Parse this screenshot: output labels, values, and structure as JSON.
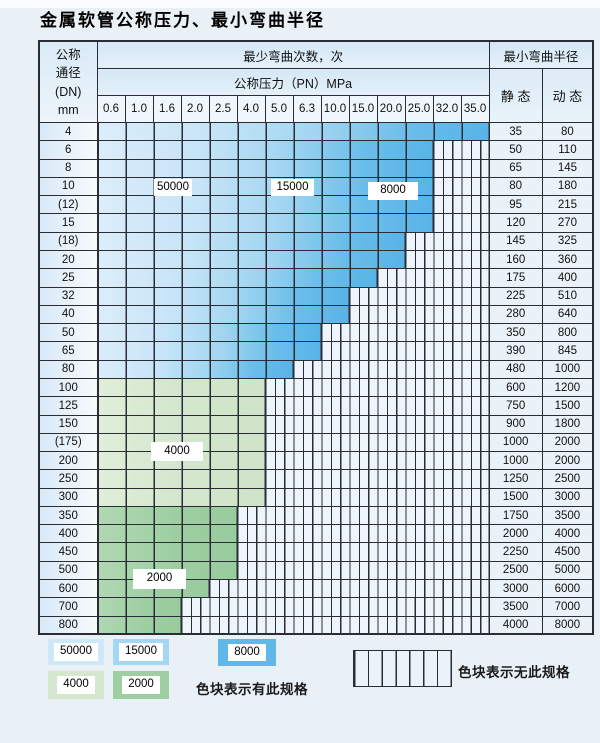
{
  "title": "金属软管公称压力、最小弯曲半径",
  "table": {
    "dn_header_lines": [
      "公称",
      "通径",
      "(DN)",
      "mm"
    ],
    "cycles_header": "最少弯曲次数，次",
    "pressure_header": "公称压力（PN）MPa",
    "radius_header": "最小弯曲半径",
    "static_label": "静 态",
    "dynamic_label": "动 态",
    "pressure_columns": [
      "0.6",
      "1.0",
      "1.6",
      "2.0",
      "2.5",
      "4.0",
      "5.0",
      "6.3",
      "10.0",
      "15.0",
      "20.0",
      "25.0",
      "32.0",
      "35.0"
    ],
    "rows": [
      {
        "dn": "4",
        "colored_cols": 14,
        "zone": "blue",
        "static": "35",
        "dynamic": "80"
      },
      {
        "dn": "6",
        "colored_cols": 12,
        "zone": "blue",
        "static": "50",
        "dynamic": "110"
      },
      {
        "dn": "8",
        "colored_cols": 12,
        "zone": "blue",
        "static": "65",
        "dynamic": "145"
      },
      {
        "dn": "10",
        "colored_cols": 12,
        "zone": "blue",
        "static": "80",
        "dynamic": "180"
      },
      {
        "dn": "(12)",
        "colored_cols": 12,
        "zone": "blue",
        "static": "95",
        "dynamic": "215"
      },
      {
        "dn": "15",
        "colored_cols": 12,
        "zone": "blue",
        "static": "120",
        "dynamic": "270"
      },
      {
        "dn": "(18)",
        "colored_cols": 11,
        "zone": "blue",
        "static": "145",
        "dynamic": "325"
      },
      {
        "dn": "20",
        "colored_cols": 11,
        "zone": "blue",
        "static": "160",
        "dynamic": "360"
      },
      {
        "dn": "25",
        "colored_cols": 10,
        "zone": "blue",
        "static": "175",
        "dynamic": "400"
      },
      {
        "dn": "32",
        "colored_cols": 9,
        "zone": "blue",
        "static": "225",
        "dynamic": "510"
      },
      {
        "dn": "40",
        "colored_cols": 9,
        "zone": "blue",
        "static": "280",
        "dynamic": "640"
      },
      {
        "dn": "50",
        "colored_cols": 8,
        "zone": "blue",
        "static": "350",
        "dynamic": "800"
      },
      {
        "dn": "65",
        "colored_cols": 8,
        "zone": "blue",
        "static": "390",
        "dynamic": "845"
      },
      {
        "dn": "80",
        "colored_cols": 7,
        "zone": "blue",
        "static": "480",
        "dynamic": "1000"
      },
      {
        "dn": "100",
        "colored_cols": 6,
        "zone": "green_light",
        "static": "600",
        "dynamic": "1200"
      },
      {
        "dn": "125",
        "colored_cols": 6,
        "zone": "green_light",
        "static": "750",
        "dynamic": "1500"
      },
      {
        "dn": "150",
        "colored_cols": 6,
        "zone": "green_light",
        "static": "900",
        "dynamic": "1800"
      },
      {
        "dn": "(175)",
        "colored_cols": 6,
        "zone": "green_light",
        "static": "1000",
        "dynamic": "2000"
      },
      {
        "dn": "200",
        "colored_cols": 6,
        "zone": "green_light",
        "static": "1000",
        "dynamic": "2000"
      },
      {
        "dn": "250",
        "colored_cols": 6,
        "zone": "green_light",
        "static": "1250",
        "dynamic": "2500"
      },
      {
        "dn": "300",
        "colored_cols": 6,
        "zone": "green_light",
        "static": "1500",
        "dynamic": "3000"
      },
      {
        "dn": "350",
        "colored_cols": 5,
        "zone": "green_dark",
        "static": "1750",
        "dynamic": "3500"
      },
      {
        "dn": "400",
        "colored_cols": 5,
        "zone": "green_dark",
        "static": "2000",
        "dynamic": "4000"
      },
      {
        "dn": "450",
        "colored_cols": 5,
        "zone": "green_dark",
        "static": "2250",
        "dynamic": "4500"
      },
      {
        "dn": "500",
        "colored_cols": 5,
        "zone": "green_dark",
        "static": "2500",
        "dynamic": "5000"
      },
      {
        "dn": "600",
        "colored_cols": 4,
        "zone": "green_dark",
        "static": "3000",
        "dynamic": "6000"
      },
      {
        "dn": "700",
        "colored_cols": 3,
        "zone": "green_dark",
        "static": "3500",
        "dynamic": "7000"
      },
      {
        "dn": "800",
        "colored_cols": 3,
        "zone": "green_dark",
        "static": "4000",
        "dynamic": "8000"
      }
    ]
  },
  "overlay_labels": {
    "b50000": "50000",
    "b15000": "15000",
    "b8000": "8000",
    "g4000": "4000",
    "g2000": "2000"
  },
  "legend": {
    "items": [
      {
        "label": "50000",
        "color": "#cfe8f8"
      },
      {
        "label": "15000",
        "color": "#a5d7f2"
      },
      {
        "label": "8000",
        "color": "#5fb8e8"
      },
      {
        "label": "4000",
        "color": "#d5e8cf"
      },
      {
        "label": "2000",
        "color": "#9dcfa2"
      }
    ],
    "has_spec_text": "色块表示有此规格",
    "no_spec_text": "色块表示无此规格"
  },
  "colors": {
    "grid": "#2a2d36",
    "page_bg": "#e9f0f6",
    "blue_light": "#d7ebf9",
    "blue_mid": "#a3d6f1",
    "blue_dark": "#5bb5e7",
    "green_light": "#d3e7cd",
    "green_dark": "#9dcfa2",
    "hatch_bg": "#edf4fa"
  }
}
